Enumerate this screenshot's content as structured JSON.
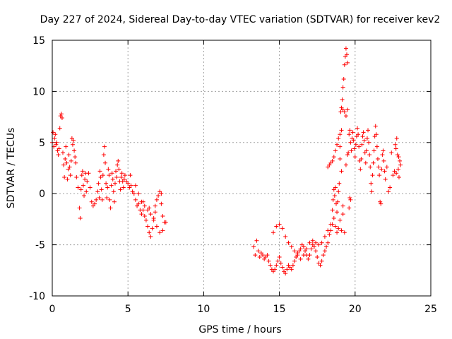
{
  "chart_data": {
    "type": "scatter",
    "title": "Day 227 of 2024, Sidereal Day-to-day VTEC variation (SDTVAR) for receiver kev2",
    "xlabel": "GPS time / hours",
    "ylabel": "SDTVAR / TECUs",
    "xlim": [
      0,
      25
    ],
    "ylim": [
      -10,
      15
    ],
    "xticks": [
      0,
      5,
      10,
      15,
      20,
      25
    ],
    "yticks": [
      -10,
      -5,
      0,
      5,
      10,
      15
    ],
    "xtick_labels": [
      "0",
      "5",
      "10",
      "15",
      "20",
      "25"
    ],
    "ytick_labels": [
      "-10",
      "-5",
      "0",
      "5",
      "10",
      "15"
    ],
    "grid": true,
    "marker": "+",
    "color": "#ff0000",
    "series": [
      {
        "name": "SDTVAR",
        "points": [
          [
            0.0,
            5.0
          ],
          [
            0.05,
            6.0
          ],
          [
            0.1,
            4.6
          ],
          [
            0.15,
            5.4
          ],
          [
            0.2,
            5.8
          ],
          [
            0.25,
            4.8
          ],
          [
            0.3,
            5.0
          ],
          [
            0.35,
            4.2
          ],
          [
            0.4,
            3.8
          ],
          [
            0.45,
            4.4
          ],
          [
            0.5,
            6.4
          ],
          [
            0.55,
            7.6
          ],
          [
            0.6,
            7.8
          ],
          [
            0.65,
            7.4
          ],
          [
            0.7,
            4.0
          ],
          [
            0.75,
            2.8
          ],
          [
            0.8,
            1.6
          ],
          [
            0.85,
            3.4
          ],
          [
            0.9,
            4.6
          ],
          [
            0.95,
            3.0
          ],
          [
            1.0,
            1.4
          ],
          [
            1.05,
            2.4
          ],
          [
            1.1,
            3.8
          ],
          [
            1.15,
            2.6
          ],
          [
            1.2,
            1.8
          ],
          [
            1.25,
            3.2
          ],
          [
            1.3,
            5.4
          ],
          [
            1.35,
            4.8
          ],
          [
            1.4,
            5.2
          ],
          [
            1.45,
            4.2
          ],
          [
            1.5,
            3.6
          ],
          [
            1.55,
            3.0
          ],
          [
            1.6,
            1.6
          ],
          [
            1.7,
            0.6
          ],
          [
            1.8,
            -1.4
          ],
          [
            1.85,
            -2.4
          ],
          [
            1.9,
            0.4
          ],
          [
            1.95,
            1.8
          ],
          [
            2.0,
            2.2
          ],
          [
            2.05,
            0.8
          ],
          [
            2.1,
            -0.2
          ],
          [
            2.15,
            1.4
          ],
          [
            2.2,
            2.0
          ],
          [
            2.25,
            0.2
          ],
          [
            2.3,
            1.2
          ],
          [
            2.4,
            2.0
          ],
          [
            2.5,
            0.6
          ],
          [
            2.6,
            -0.8
          ],
          [
            2.7,
            -1.2
          ],
          [
            2.8,
            -1.0
          ],
          [
            2.9,
            -0.6
          ],
          [
            3.0,
            0.2
          ],
          [
            3.05,
            1.0
          ],
          [
            3.1,
            -0.4
          ],
          [
            3.15,
            2.2
          ],
          [
            3.2,
            1.6
          ],
          [
            3.25,
            0.4
          ],
          [
            3.3,
            -0.6
          ],
          [
            3.35,
            1.8
          ],
          [
            3.4,
            3.8
          ],
          [
            3.45,
            4.6
          ],
          [
            3.5,
            3.0
          ],
          [
            3.55,
            1.0
          ],
          [
            3.6,
            -0.4
          ],
          [
            3.65,
            0.6
          ],
          [
            3.7,
            2.4
          ],
          [
            3.75,
            1.8
          ],
          [
            3.8,
            -0.6
          ],
          [
            3.85,
            -1.4
          ],
          [
            3.9,
            0.8
          ],
          [
            3.95,
            2.0
          ],
          [
            4.0,
            1.4
          ],
          [
            4.05,
            0.2
          ],
          [
            4.1,
            -0.8
          ],
          [
            4.15,
            1.0
          ],
          [
            4.2,
            2.2
          ],
          [
            4.25,
            1.6
          ],
          [
            4.3,
            2.8
          ],
          [
            4.35,
            3.2
          ],
          [
            4.4,
            2.4
          ],
          [
            4.45,
            1.2
          ],
          [
            4.5,
            0.4
          ],
          [
            4.55,
            1.6
          ],
          [
            4.6,
            2.0
          ],
          [
            4.65,
            1.2
          ],
          [
            4.7,
            0.6
          ],
          [
            4.75,
            1.4
          ],
          [
            4.8,
            1.8
          ],
          [
            4.9,
            1.2
          ],
          [
            5.0,
            1.0
          ],
          [
            5.1,
            0.6
          ],
          [
            5.15,
            1.8
          ],
          [
            5.2,
            0.8
          ],
          [
            5.3,
            0.2
          ],
          [
            5.4,
            0.0
          ],
          [
            5.5,
            -0.6
          ],
          [
            5.6,
            -1.2
          ],
          [
            5.7,
            -1.0
          ],
          [
            5.8,
            -1.6
          ],
          [
            5.9,
            -2.0
          ],
          [
            6.0,
            -1.6
          ],
          [
            6.1,
            -2.2
          ],
          [
            6.2,
            -2.6
          ],
          [
            6.3,
            -3.2
          ],
          [
            6.4,
            -3.8
          ],
          [
            6.5,
            -4.2
          ],
          [
            6.6,
            -3.4
          ],
          [
            6.7,
            -2.4
          ],
          [
            6.8,
            -1.2
          ],
          [
            6.9,
            -0.6
          ],
          [
            7.0,
            -0.2
          ],
          [
            7.1,
            0.2
          ],
          [
            7.2,
            0.0
          ],
          [
            7.3,
            -2.2
          ],
          [
            7.4,
            -2.8
          ],
          [
            5.5,
            0.8
          ],
          [
            5.7,
            0.0
          ],
          [
            5.9,
            -0.8
          ],
          [
            6.1,
            -1.2
          ],
          [
            6.3,
            -1.6
          ],
          [
            6.5,
            -2.0
          ],
          [
            6.7,
            -2.6
          ],
          [
            6.9,
            -3.2
          ],
          [
            7.1,
            -3.8
          ],
          [
            7.3,
            -3.6
          ],
          [
            7.5,
            -2.8
          ],
          [
            6.0,
            -0.8
          ],
          [
            6.4,
            -1.4
          ],
          [
            6.8,
            -1.8
          ],
          [
            7.2,
            -1.0
          ],
          [
            13.3,
            -5.2
          ],
          [
            13.4,
            -6.0
          ],
          [
            13.5,
            -4.6
          ],
          [
            13.6,
            -5.6
          ],
          [
            13.7,
            -6.2
          ],
          [
            13.8,
            -5.8
          ],
          [
            13.9,
            -6.0
          ],
          [
            14.0,
            -6.4
          ],
          [
            14.1,
            -6.2
          ],
          [
            14.2,
            -6.0
          ],
          [
            14.3,
            -6.6
          ],
          [
            14.4,
            -7.0
          ],
          [
            14.5,
            -7.4
          ],
          [
            14.6,
            -7.6
          ],
          [
            14.7,
            -7.4
          ],
          [
            14.8,
            -7.0
          ],
          [
            14.9,
            -6.6
          ],
          [
            15.0,
            -6.2
          ],
          [
            15.1,
            -6.8
          ],
          [
            15.2,
            -7.2
          ],
          [
            15.3,
            -7.6
          ],
          [
            15.4,
            -7.8
          ],
          [
            15.5,
            -7.4
          ],
          [
            15.6,
            -7.0
          ],
          [
            15.7,
            -7.2
          ],
          [
            15.8,
            -7.4
          ],
          [
            15.9,
            -7.0
          ],
          [
            16.0,
            -6.6
          ],
          [
            16.1,
            -6.2
          ],
          [
            16.2,
            -5.8
          ],
          [
            16.3,
            -5.6
          ],
          [
            16.4,
            -5.4
          ],
          [
            16.5,
            -5.0
          ],
          [
            16.6,
            -5.2
          ],
          [
            16.7,
            -5.6
          ],
          [
            16.8,
            -6.0
          ],
          [
            16.9,
            -6.4
          ],
          [
            17.0,
            -6.0
          ],
          [
            17.1,
            -5.4
          ],
          [
            17.2,
            -5.0
          ],
          [
            17.3,
            -5.2
          ],
          [
            17.4,
            -5.6
          ],
          [
            17.5,
            -6.2
          ],
          [
            17.6,
            -6.8
          ],
          [
            17.7,
            -7.0
          ],
          [
            17.8,
            -6.6
          ],
          [
            17.9,
            -6.0
          ],
          [
            18.0,
            -5.6
          ],
          [
            18.1,
            -5.2
          ],
          [
            18.2,
            -4.8
          ],
          [
            18.3,
            -4.0
          ],
          [
            18.4,
            -3.6
          ],
          [
            18.5,
            -3.0
          ],
          [
            18.6,
            -2.4
          ],
          [
            18.7,
            -3.2
          ],
          [
            18.8,
            -3.8
          ],
          [
            18.9,
            -3.4
          ],
          [
            19.0,
            -2.6
          ],
          [
            19.1,
            -3.6
          ],
          [
            19.2,
            -2.0
          ],
          [
            14.6,
            -3.8
          ],
          [
            14.8,
            -3.2
          ],
          [
            15.0,
            -3.0
          ],
          [
            15.2,
            -3.4
          ],
          [
            15.4,
            -4.2
          ],
          [
            15.6,
            -4.8
          ],
          [
            15.8,
            -5.2
          ],
          [
            16.0,
            -5.6
          ],
          [
            16.2,
            -6.0
          ],
          [
            16.4,
            -6.4
          ],
          [
            16.6,
            -6.0
          ],
          [
            16.8,
            -5.4
          ],
          [
            17.0,
            -4.8
          ],
          [
            17.2,
            -4.6
          ],
          [
            17.4,
            -4.8
          ],
          [
            17.6,
            -5.0
          ],
          [
            17.8,
            -4.8
          ],
          [
            18.0,
            -4.2
          ],
          [
            18.2,
            -3.6
          ],
          [
            18.4,
            -3.0
          ],
          [
            18.5,
            -1.6
          ],
          [
            18.55,
            -0.6
          ],
          [
            18.6,
            0.4
          ],
          [
            18.65,
            -0.2
          ],
          [
            18.7,
            0.6
          ],
          [
            18.75,
            -1.0
          ],
          [
            18.8,
            -1.8
          ],
          [
            18.85,
            -0.8
          ],
          [
            18.9,
            0.2
          ],
          [
            18.95,
            1.0
          ],
          [
            18.2,
            2.6
          ],
          [
            18.3,
            2.8
          ],
          [
            18.4,
            3.0
          ],
          [
            18.5,
            3.2
          ],
          [
            18.6,
            3.6
          ],
          [
            18.7,
            4.2
          ],
          [
            18.8,
            4.8
          ],
          [
            18.9,
            5.4
          ],
          [
            19.0,
            5.8
          ],
          [
            19.1,
            6.2
          ],
          [
            19.05,
            8.0
          ],
          [
            19.1,
            8.4
          ],
          [
            19.15,
            9.2
          ],
          [
            19.2,
            10.4
          ],
          [
            19.25,
            11.2
          ],
          [
            19.3,
            12.6
          ],
          [
            19.35,
            13.4
          ],
          [
            19.4,
            14.2
          ],
          [
            19.45,
            13.6
          ],
          [
            19.5,
            12.8
          ],
          [
            19.2,
            8.2
          ],
          [
            19.3,
            8.0
          ],
          [
            19.4,
            7.6
          ],
          [
            19.5,
            8.2
          ],
          [
            19.55,
            4.0
          ],
          [
            19.6,
            5.8
          ],
          [
            19.65,
            6.2
          ],
          [
            19.7,
            5.0
          ],
          [
            19.75,
            4.2
          ],
          [
            19.8,
            5.4
          ],
          [
            19.85,
            6.0
          ],
          [
            19.9,
            5.2
          ],
          [
            19.95,
            4.4
          ],
          [
            20.0,
            3.6
          ],
          [
            20.05,
            4.8
          ],
          [
            20.1,
            5.6
          ],
          [
            20.15,
            6.4
          ],
          [
            20.2,
            5.8
          ],
          [
            20.25,
            4.6
          ],
          [
            20.3,
            3.2
          ],
          [
            20.35,
            2.4
          ],
          [
            20.4,
            3.4
          ],
          [
            20.45,
            4.8
          ],
          [
            20.5,
            5.6
          ],
          [
            20.55,
            6.0
          ],
          [
            20.6,
            5.2
          ],
          [
            20.65,
            4.0
          ],
          [
            20.7,
            3.0
          ],
          [
            20.75,
            4.2
          ],
          [
            20.8,
            5.4
          ],
          [
            20.85,
            6.2
          ],
          [
            20.9,
            5.0
          ],
          [
            20.95,
            3.8
          ],
          [
            21.0,
            2.6
          ],
          [
            21.05,
            1.0
          ],
          [
            21.1,
            0.2
          ],
          [
            21.15,
            1.8
          ],
          [
            21.2,
            3.0
          ],
          [
            21.25,
            4.2
          ],
          [
            21.3,
            5.6
          ],
          [
            21.35,
            6.6
          ],
          [
            21.4,
            5.8
          ],
          [
            21.45,
            4.6
          ],
          [
            21.5,
            3.4
          ],
          [
            21.55,
            2.6
          ],
          [
            21.6,
            1.8
          ],
          [
            21.65,
            -0.8
          ],
          [
            21.7,
            -1.0
          ],
          [
            21.75,
            2.4
          ],
          [
            21.8,
            3.8
          ],
          [
            21.85,
            4.2
          ],
          [
            21.9,
            3.2
          ],
          [
            21.95,
            2.2
          ],
          [
            22.0,
            1.4
          ],
          [
            22.1,
            2.6
          ],
          [
            22.2,
            0.2
          ],
          [
            22.3,
            0.6
          ],
          [
            22.4,
            4.0
          ],
          [
            22.5,
            1.8
          ],
          [
            22.6,
            2.2
          ],
          [
            22.7,
            4.4
          ],
          [
            22.75,
            5.4
          ],
          [
            22.8,
            3.8
          ],
          [
            22.85,
            2.4
          ],
          [
            22.9,
            1.6
          ],
          [
            22.95,
            3.2
          ],
          [
            23.0,
            2.8
          ],
          [
            22.65,
            4.8
          ],
          [
            22.72,
            2.0
          ],
          [
            22.88,
            3.6
          ],
          [
            19.6,
            -1.4
          ],
          [
            19.65,
            -0.4
          ],
          [
            19.0,
            4.6
          ],
          [
            19.7,
            -0.6
          ],
          [
            19.3,
            -3.8
          ],
          [
            19.2,
            -1.2
          ],
          [
            19.1,
            2.2
          ],
          [
            19.4,
            2.8
          ],
          [
            19.5,
            3.8
          ],
          [
            19.0,
            3.4
          ]
        ]
      }
    ]
  }
}
